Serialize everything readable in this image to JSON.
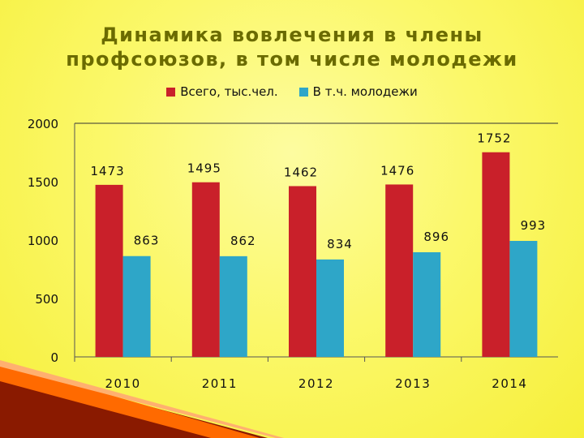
{
  "chart_data": {
    "type": "bar",
    "title": "Динамика вовлечения в члены профсоюзов, в том числе молодежи",
    "categories": [
      "2010",
      "2011",
      "2012",
      "2013",
      "2014"
    ],
    "series": [
      {
        "name": "Всего, тыс.чел.",
        "color": "#c9202a",
        "values": [
          1473,
          1495,
          1462,
          1476,
          1752
        ]
      },
      {
        "name": "В т.ч. молодежи",
        "color": "#2ea6c8",
        "values": [
          863,
          862,
          834,
          896,
          993
        ]
      }
    ],
    "yticks": [
      "0",
      "500",
      "1000",
      "1500",
      "2000"
    ],
    "ylim": [
      0,
      2000
    ],
    "xlabel": "",
    "ylabel": "",
    "legend_position": "top",
    "grid": false
  }
}
